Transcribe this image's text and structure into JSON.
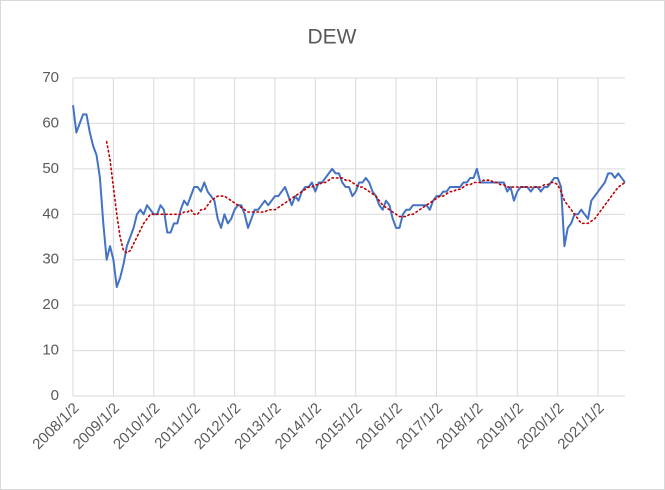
{
  "chart_data": {
    "type": "line",
    "title": "DEW",
    "x": [
      "2008/1",
      "2008/2",
      "2008/3",
      "2008/4",
      "2008/5",
      "2008/6",
      "2008/7",
      "2008/8",
      "2008/9",
      "2008/10",
      "2008/11",
      "2008/12",
      "2009/1",
      "2009/2",
      "2009/3",
      "2009/4",
      "2009/5",
      "2009/6",
      "2009/7",
      "2009/8",
      "2009/9",
      "2009/10",
      "2009/11",
      "2009/12",
      "2010/1",
      "2010/2",
      "2010/3",
      "2010/4",
      "2010/5",
      "2010/6",
      "2010/7",
      "2010/8",
      "2010/9",
      "2010/10",
      "2010/11",
      "2010/12",
      "2011/1",
      "2011/2",
      "2011/3",
      "2011/4",
      "2011/5",
      "2011/6",
      "2011/7",
      "2011/8",
      "2011/9",
      "2011/10",
      "2011/11",
      "2011/12",
      "2012/1",
      "2012/2",
      "2012/3",
      "2012/4",
      "2012/5",
      "2012/6",
      "2012/7",
      "2012/8",
      "2012/9",
      "2012/10",
      "2012/11",
      "2012/12",
      "2013/1",
      "2013/2",
      "2013/3",
      "2013/4",
      "2013/5",
      "2013/6",
      "2013/7",
      "2013/8",
      "2013/9",
      "2013/10",
      "2013/11",
      "2013/12",
      "2014/1",
      "2014/2",
      "2014/3",
      "2014/4",
      "2014/5",
      "2014/6",
      "2014/7",
      "2014/8",
      "2014/9",
      "2014/10",
      "2014/11",
      "2014/12",
      "2015/1",
      "2015/2",
      "2015/3",
      "2015/4",
      "2015/5",
      "2015/6",
      "2015/7",
      "2015/8",
      "2015/9",
      "2015/10",
      "2015/11",
      "2015/12",
      "2016/1",
      "2016/2",
      "2016/3",
      "2016/4",
      "2016/5",
      "2016/6",
      "2016/7",
      "2016/8",
      "2016/9",
      "2016/10",
      "2016/11",
      "2016/12",
      "2017/1",
      "2017/2",
      "2017/3",
      "2017/4",
      "2017/5",
      "2017/6",
      "2017/7",
      "2017/8",
      "2017/9",
      "2017/10",
      "2017/11",
      "2017/12",
      "2018/1",
      "2018/2",
      "2018/3",
      "2018/4",
      "2018/5",
      "2018/6",
      "2018/7",
      "2018/8",
      "2018/9",
      "2018/10",
      "2018/11",
      "2018/12",
      "2019/1",
      "2019/2",
      "2019/3",
      "2019/4",
      "2019/5",
      "2019/6",
      "2019/7",
      "2019/8",
      "2019/9",
      "2019/10",
      "2019/11",
      "2019/12",
      "2020/1",
      "2020/2",
      "2020/3",
      "2020/4",
      "2020/5",
      "2020/6",
      "2020/7",
      "2020/8",
      "2020/9",
      "2020/10",
      "2020/11",
      "2020/12",
      "2021/1",
      "2021/2",
      "2021/3",
      "2021/4",
      "2021/5",
      "2021/6",
      "2021/7",
      "2021/8",
      "2021/9"
    ],
    "series": [
      {
        "color": "#4472c4",
        "style": "solid",
        "values": [
          64,
          58,
          60,
          62,
          62,
          58,
          55,
          53,
          48,
          38,
          30,
          33,
          30,
          24,
          26,
          29,
          33,
          35,
          37,
          40,
          41,
          40,
          42,
          41,
          40,
          40,
          42,
          41,
          36,
          36,
          38,
          38,
          41,
          43,
          42,
          44,
          46,
          46,
          45,
          47,
          45,
          44,
          43,
          39,
          37,
          40,
          38,
          39,
          41,
          42,
          42,
          40,
          37,
          39,
          41,
          41,
          42,
          43,
          42,
          43,
          44,
          44,
          45,
          46,
          44,
          42,
          44,
          43,
          45,
          46,
          46,
          47,
          45,
          47,
          47,
          48,
          49,
          50,
          49,
          49,
          47,
          46,
          46,
          44,
          45,
          47,
          47,
          48,
          47,
          45,
          44,
          42,
          41,
          43,
          42,
          39,
          37,
          37,
          40,
          41,
          41,
          42,
          42,
          42,
          42,
          42,
          41,
          43,
          44,
          44,
          45,
          45,
          46,
          46,
          46,
          46,
          47,
          47,
          48,
          48,
          50,
          47,
          47,
          47,
          47,
          47,
          47,
          47,
          47,
          45,
          46,
          43,
          45,
          46,
          46,
          46,
          45,
          46,
          46,
          45,
          46,
          46,
          47,
          48,
          48,
          46,
          33,
          37,
          38,
          40,
          40,
          41,
          40,
          39,
          43,
          44,
          45,
          46,
          47,
          49,
          49,
          48,
          49,
          48,
          47
        ]
      },
      {
        "color": "#c00000",
        "style": "dotted",
        "values": [
          null,
          null,
          null,
          null,
          null,
          null,
          null,
          null,
          null,
          null,
          56,
          52,
          46,
          40,
          35,
          32,
          31.5,
          32,
          33.5,
          35,
          36.5,
          38,
          39,
          40,
          40,
          40,
          40,
          40,
          40,
          40,
          40,
          40,
          40,
          40.5,
          40.5,
          41,
          40,
          40,
          41,
          41,
          42,
          43,
          43.5,
          44,
          44,
          44,
          43.5,
          43,
          42.5,
          42,
          41.5,
          41,
          40.5,
          40.5,
          40.5,
          40.5,
          40.5,
          40.5,
          41,
          41,
          41,
          41.5,
          42,
          42.5,
          43,
          43.5,
          44,
          44.5,
          45,
          45.5,
          46,
          46,
          46.5,
          46.5,
          47,
          47,
          47.5,
          48,
          48,
          48,
          48,
          47.5,
          47.5,
          47,
          46.5,
          46,
          46,
          45.5,
          45,
          44.5,
          44,
          43,
          42,
          41.5,
          41,
          40.5,
          40,
          39.5,
          39.5,
          39.5,
          40,
          40,
          40.5,
          41,
          41.5,
          42,
          42.5,
          43,
          43.5,
          44,
          44,
          44.5,
          45,
          45,
          45.5,
          45.5,
          46,
          46.5,
          46.5,
          47,
          47,
          47,
          47.5,
          47.5,
          47.5,
          47,
          47,
          46.5,
          46.5,
          46,
          46,
          46,
          46,
          46,
          46,
          46,
          46,
          46,
          46,
          46,
          46.5,
          46.5,
          47,
          47,
          46.5,
          45,
          43,
          42,
          41,
          40,
          39,
          38,
          38,
          38,
          38.5,
          39,
          40,
          41,
          42,
          43,
          44,
          45,
          46,
          46.5,
          47
        ]
      }
    ],
    "xlim": [
      "2008/1",
      "2021/9"
    ],
    "xticks": [
      {
        "value": "2008/1",
        "label": "2008/1/2"
      },
      {
        "value": "2009/1",
        "label": "2009/1/2"
      },
      {
        "value": "2010/1",
        "label": "2010/1/2"
      },
      {
        "value": "2011/1",
        "label": "2011/1/2"
      },
      {
        "value": "2012/1",
        "label": "2012/1/2"
      },
      {
        "value": "2013/1",
        "label": "2013/1/2"
      },
      {
        "value": "2014/1",
        "label": "2014/1/2"
      },
      {
        "value": "2015/1",
        "label": "2015/1/2"
      },
      {
        "value": "2016/1",
        "label": "2016/1/2"
      },
      {
        "value": "2017/1",
        "label": "2017/1/2"
      },
      {
        "value": "2018/1",
        "label": "2018/1/2"
      },
      {
        "value": "2019/1",
        "label": "2019/1/2"
      },
      {
        "value": "2020/1",
        "label": "2020/1/2"
      },
      {
        "value": "2021/1",
        "label": "2021/1/2"
      }
    ],
    "ylim": [
      0,
      70
    ],
    "yticks": [
      0,
      10,
      20,
      30,
      40,
      50,
      60,
      70
    ],
    "grid": true
  }
}
